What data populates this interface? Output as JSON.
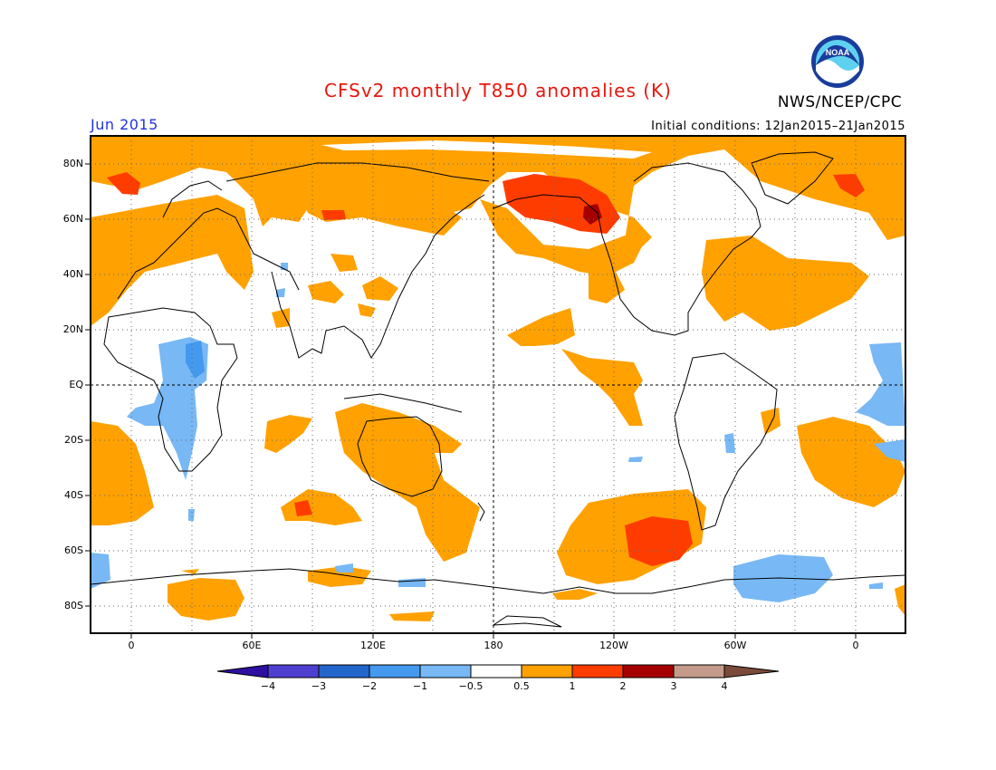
{
  "header": {
    "title": "CFSv2 monthly T850 anomalies (K)",
    "month": "Jun 2015",
    "initial_conditions": "Initial conditions: 12Jan2015–21Jan2015",
    "agency": "NWS/NCEP/CPC",
    "logo_text": "NOAA"
  },
  "axes": {
    "lat_labels": [
      "80N",
      "60N",
      "40N",
      "20N",
      "EQ",
      "20S",
      "40S",
      "60S",
      "80S"
    ],
    "lon_labels": [
      "0",
      "60E",
      "120E",
      "180",
      "120W",
      "60W",
      "0"
    ]
  },
  "colorbar": {
    "labels": [
      "−4",
      "−3",
      "−2",
      "−1",
      "−0.5",
      "0.5",
      "1",
      "2",
      "3",
      "4"
    ],
    "colors": [
      "#2e0fa0",
      "#4f3fd0",
      "#2266cc",
      "#4499ee",
      "#77b8f5",
      "#ffffff",
      "#ffa100",
      "#ff3c00",
      "#a50000",
      "#c49a8a",
      "#7a4a3a"
    ]
  },
  "map": {
    "colors": {
      "warm1": "#ffa100",
      "warm2": "#ff3c00",
      "warm3": "#a50000",
      "cool1": "#77b8f5",
      "cool2": "#4499ee"
    }
  }
}
